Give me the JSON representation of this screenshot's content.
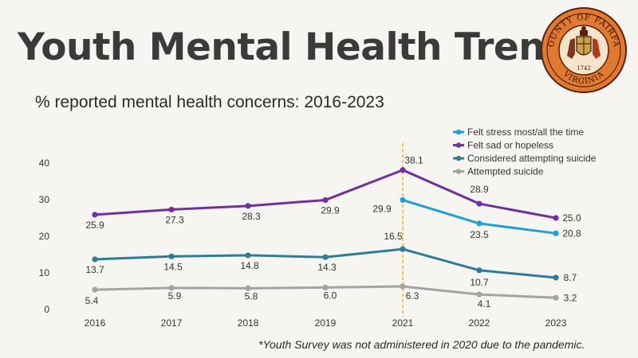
{
  "header": {
    "title": "Youth Mental Health Trends",
    "subtitle": "% reported mental health concerns: 2016-2023"
  },
  "seal": {
    "top_text": "COUNTY OF FAIRFAX",
    "bottom_text": "VIRGINIA",
    "year": "1742",
    "colors": {
      "ring": "#e07a2e",
      "inner": "#f6e3c8",
      "dark": "#5a1f0a"
    }
  },
  "footnote": "*Youth Survey was not administered in 2020 due to the pandemic.",
  "chart_data": {
    "type": "line",
    "title": "% reported mental health concerns: 2016-2023",
    "xlabel": "",
    "ylabel": "",
    "categories": [
      "2016",
      "2017",
      "2018",
      "2019",
      "2021",
      "2022",
      "2023"
    ],
    "ylim": [
      0,
      40
    ],
    "yticks": [
      "0",
      "10",
      "20",
      "30",
      "40"
    ],
    "grid": false,
    "legend_position": "top-right",
    "annotation": {
      "type": "vertical-dashed-line",
      "at": "2021",
      "color": "#f2b51b"
    },
    "series": [
      {
        "name": "Felt stress most/all the time",
        "color": "#19a1d8",
        "values": [
          null,
          null,
          null,
          null,
          29.9,
          23.5,
          20.8
        ],
        "labels": [
          "",
          "",
          "",
          "",
          "29.9",
          "23.5",
          "20.8"
        ]
      },
      {
        "name": "Felt sad or hopeless",
        "color": "#7030a0",
        "values": [
          25.9,
          27.3,
          28.3,
          29.9,
          38.1,
          28.9,
          25.0
        ],
        "labels": [
          "25.9",
          "27.3",
          "28.3",
          "29.9",
          "38.1",
          "28.9",
          "25.0"
        ]
      },
      {
        "name": "Considered attempting suicide",
        "color": "#2e7d96",
        "values": [
          13.7,
          14.5,
          14.8,
          14.3,
          16.5,
          10.7,
          8.7
        ],
        "labels": [
          "13.7",
          "14.5",
          "14.8",
          "14.3",
          "16.5",
          "10.7",
          "8.7"
        ]
      },
      {
        "name": "Attempted suicide",
        "color": "#a3a3a3",
        "values": [
          5.4,
          5.9,
          5.8,
          6.0,
          6.3,
          4.1,
          3.2
        ],
        "labels": [
          "5.4",
          "5.9",
          "5.8",
          "6.0",
          "6.3",
          "4.1",
          "3.2"
        ]
      }
    ]
  }
}
